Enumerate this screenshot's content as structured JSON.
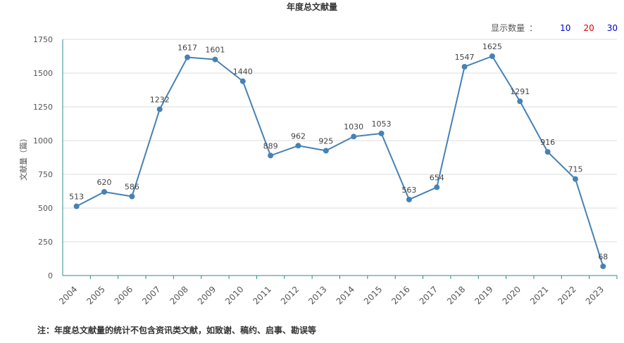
{
  "title": "年度总文献量",
  "count_selector": {
    "label": "显示数量",
    "separator": "：",
    "options": [
      {
        "label": "10",
        "color": "#0000cc"
      },
      {
        "label": "20",
        "color": "#dd0000"
      },
      {
        "label": "30",
        "color": "#0000cc"
      }
    ]
  },
  "footnote": "注：年度总文献量的统计不包含资讯类文献，如致谢、稿约、启事、勘误等",
  "chart_data": {
    "type": "line",
    "title": "年度总文献量",
    "xlabel": "",
    "ylabel": "文献量（篇）",
    "ylim": [
      0,
      1750
    ],
    "yticks": [
      0,
      250,
      500,
      750,
      1000,
      1250,
      1500,
      1750
    ],
    "grid": true,
    "color": "#4682b4",
    "categories": [
      "2004",
      "2005",
      "2006",
      "2007",
      "2008",
      "2009",
      "2010",
      "2011",
      "2012",
      "2013",
      "2014",
      "2015",
      "2016",
      "2017",
      "2018",
      "2019",
      "2020",
      "2021",
      "2022",
      "2023"
    ],
    "values": [
      513,
      620,
      586,
      1232,
      1617,
      1601,
      1440,
      889,
      962,
      925,
      1030,
      1053,
      563,
      654,
      1547,
      1625,
      1291,
      916,
      715,
      68
    ]
  }
}
